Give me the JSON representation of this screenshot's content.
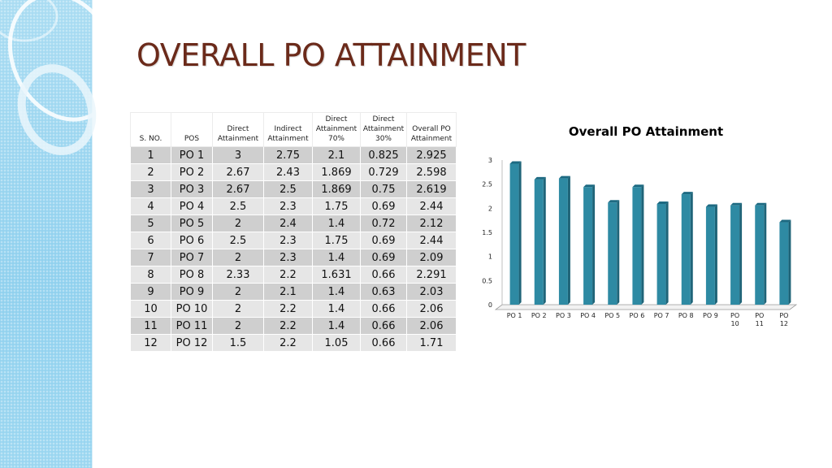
{
  "slide": {
    "title": "OVERALL PO ATTAINMENT"
  },
  "table": {
    "headers": [
      "S. NO.",
      "POS",
      "Direct Attainment",
      "Indirect Attainment",
      "Direct Attainment 70%",
      "Direct Attainment 30%",
      "Overall PO Attainment"
    ],
    "rows": [
      [
        "1",
        "PO 1",
        "3",
        "2.75",
        "2.1",
        "0.825",
        "2.925"
      ],
      [
        "2",
        "PO 2",
        "2.67",
        "2.43",
        "1.869",
        "0.729",
        "2.598"
      ],
      [
        "3",
        "PO 3",
        "2.67",
        "2.5",
        "1.869",
        "0.75",
        "2.619"
      ],
      [
        "4",
        "PO 4",
        "2.5",
        "2.3",
        "1.75",
        "0.69",
        "2.44"
      ],
      [
        "5",
        "PO 5",
        "2",
        "2.4",
        "1.4",
        "0.72",
        "2.12"
      ],
      [
        "6",
        "PO 6",
        "2.5",
        "2.3",
        "1.75",
        "0.69",
        "2.44"
      ],
      [
        "7",
        "PO 7",
        "2",
        "2.3",
        "1.4",
        "0.69",
        "2.09"
      ],
      [
        "8",
        "PO 8",
        "2.33",
        "2.2",
        "1.631",
        "0.66",
        "2.291"
      ],
      [
        "9",
        "PO 9",
        "2",
        "2.1",
        "1.4",
        "0.63",
        "2.03"
      ],
      [
        "10",
        "PO 10",
        "2",
        "2.2",
        "1.4",
        "0.66",
        "2.06"
      ],
      [
        "11",
        "PO 11",
        "2",
        "2.2",
        "1.4",
        "0.66",
        "2.06"
      ],
      [
        "12",
        "PO 12",
        "1.5",
        "2.2",
        "1.05",
        "0.66",
        "1.71"
      ]
    ]
  },
  "chart_data": {
    "type": "bar",
    "title": "Overall PO Attainment",
    "categories": [
      "PO 1",
      "PO 2",
      "PO 3",
      "PO 4",
      "PO 5",
      "PO 6",
      "PO 7",
      "PO 8",
      "PO 9",
      "PO 10",
      "PO 11",
      "PO 12"
    ],
    "values": [
      2.925,
      2.598,
      2.619,
      2.44,
      2.12,
      2.44,
      2.09,
      2.291,
      2.03,
      2.06,
      2.06,
      1.71
    ],
    "y_ticks": [
      "0",
      "0.5",
      "1",
      "1.5",
      "2",
      "2.5",
      "3"
    ],
    "ylim": [
      0,
      3
    ],
    "grid": false,
    "legend": "none",
    "bar_color": "#2e8aa3",
    "bar_top_color": "#1d6a82"
  }
}
